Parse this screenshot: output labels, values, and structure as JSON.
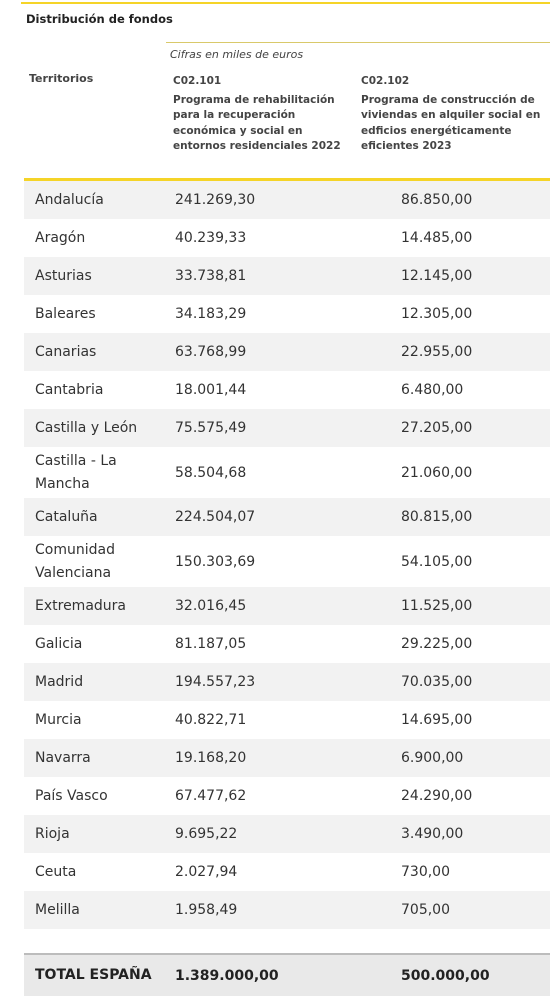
{
  "title": "Distribución de fondos",
  "units": "Cifras en miles de euros",
  "column_label": "Territorios",
  "programs": [
    {
      "code": "C02.101",
      "description": "Programa de rehabilitación para la recuperación económica y social en entornos residenciales 2022"
    },
    {
      "code": "C02.102",
      "description": "Programa de construcción de viviendas en alquiler social en edficios energéticamente eficientes 2023"
    }
  ],
  "rows": [
    {
      "territory": "Andalucía",
      "v1": "241.269,30",
      "v2": "86.850,00"
    },
    {
      "territory": "Aragón",
      "v1": "40.239,33",
      "v2": "14.485,00"
    },
    {
      "territory": "Asturias",
      "v1": "33.738,81",
      "v2": "12.145,00"
    },
    {
      "territory": "Baleares",
      "v1": "34.183,29",
      "v2": "12.305,00"
    },
    {
      "territory": "Canarias",
      "v1": "63.768,99",
      "v2": "22.955,00"
    },
    {
      "territory": "Cantabria",
      "v1": "18.001,44",
      "v2": "6.480,00"
    },
    {
      "territory": "Castilla y León",
      "v1": "75.575,49",
      "v2": "27.205,00"
    },
    {
      "territory": "Castilla - La Mancha",
      "v1": "58.504,68",
      "v2": "21.060,00"
    },
    {
      "territory": "Cataluña",
      "v1": "224.504,07",
      "v2": "80.815,00"
    },
    {
      "territory": "Comunidad Valenciana",
      "v1": "150.303,69",
      "v2": "54.105,00"
    },
    {
      "territory": "Extremadura",
      "v1": "32.016,45",
      "v2": "11.525,00"
    },
    {
      "territory": "Galicia",
      "v1": "81.187,05",
      "v2": "29.225,00"
    },
    {
      "territory": "Madrid",
      "v1": "194.557,23",
      "v2": "70.035,00"
    },
    {
      "territory": "Murcia",
      "v1": "40.822,71",
      "v2": "14.695,00"
    },
    {
      "territory": "Navarra",
      "v1": "19.168,20",
      "v2": "6.900,00"
    },
    {
      "territory": "País Vasco",
      "v1": "67.477,62",
      "v2": "24.290,00"
    },
    {
      "territory": "Rioja",
      "v1": "9.695,22",
      "v2": "3.490,00"
    },
    {
      "territory": "Ceuta",
      "v1": "2.027,94",
      "v2": "730,00"
    },
    {
      "territory": "Melilla",
      "v1": "1.958,49",
      "v2": "705,00"
    }
  ],
  "total": {
    "label": "TOTAL ESPAÑA",
    "v1": "1.389.000,00",
    "v2": "500.000,00"
  }
}
